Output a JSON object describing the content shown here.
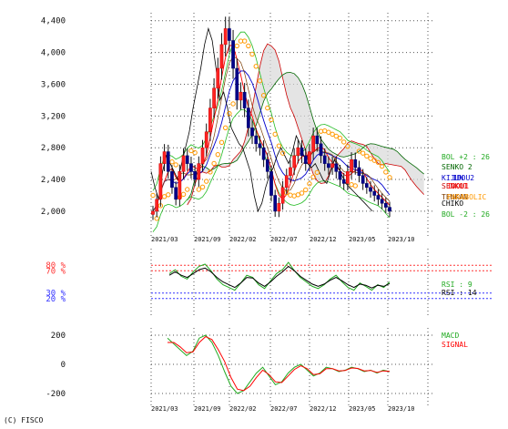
{
  "chart_data": [
    {
      "type": "candlestick",
      "panel": "price",
      "ylim": [
        1850,
        4500
      ],
      "yticks": [
        2000,
        2400,
        2800,
        3200,
        3600,
        4000,
        4400
      ],
      "ytick_labels": [
        "2,000",
        "2,400",
        "2,800",
        "3,200",
        "3,600",
        "4,000",
        "4,400"
      ],
      "x_labels": [
        "2021/03",
        "2021/09",
        "2022/02",
        "2022/07",
        "2022/12",
        "2023/05",
        "2023/10"
      ],
      "legend": [
        {
          "label": "BOL +2 : 26",
          "color": "#22aa22"
        },
        {
          "label": "SENKO 2",
          "color": "#006600"
        },
        {
          "label": "KIJUN",
          "color": "#0000cc"
        },
        {
          "label": "IDOU2",
          "color": "#0000cc"
        },
        {
          "label": "SENKO1",
          "color": "#cc0000"
        },
        {
          "label": "IDOU1",
          "color": "#ff0000"
        },
        {
          "label": "TENKAN",
          "color": "#7a3a00"
        },
        {
          "label": "PARABOLIC",
          "color": "#ff9900"
        },
        {
          "label": "CHIKO",
          "color": "#000000"
        },
        {
          "label": "BOL -2 : 26",
          "color": "#22aa22"
        }
      ],
      "close_series": [
        2000,
        2150,
        2600,
        2750,
        2500,
        2300,
        2150,
        2500,
        2700,
        2600,
        2500,
        2400,
        2600,
        2800,
        3000,
        3300,
        3550,
        3800,
        4100,
        4300,
        4150,
        3800,
        3400,
        3500,
        3300,
        3050,
        2950,
        2850,
        2800,
        2650,
        2500,
        2200,
        2000,
        2100,
        2300,
        2450,
        2550,
        2700,
        2800,
        2700,
        2600,
        2750,
        2950,
        2850,
        2700,
        2600,
        2550,
        2600,
        2500,
        2400,
        2350,
        2500,
        2650,
        2550,
        2450,
        2350,
        2300,
        2250,
        2200,
        2150,
        2100,
        2050,
        2000
      ]
    },
    {
      "type": "line",
      "panel": "rsi",
      "ylim": [
        0,
        100
      ],
      "yticks": [
        20,
        30,
        70,
        80
      ],
      "ytick_labels": [
        "20 %",
        "30 %",
        "70 %",
        "80 %"
      ],
      "series": [
        {
          "name": "RSI : 9",
          "color": "#22aa22",
          "values": [
            65,
            72,
            60,
            55,
            68,
            78,
            82,
            70,
            55,
            45,
            40,
            35,
            48,
            62,
            58,
            45,
            38,
            52,
            65,
            72,
            85,
            70,
            58,
            50,
            42,
            38,
            45,
            55,
            62,
            50,
            40,
            35,
            48,
            42,
            35,
            45,
            40,
            50
          ]
        },
        {
          "name": "RSI : 14",
          "color": "#000000",
          "values": [
            62,
            68,
            62,
            58,
            65,
            72,
            75,
            68,
            58,
            50,
            45,
            40,
            48,
            58,
            57,
            48,
            42,
            50,
            60,
            68,
            78,
            70,
            60,
            53,
            46,
            42,
            46,
            53,
            58,
            52,
            45,
            40,
            46,
            44,
            39,
            44,
            42,
            47
          ]
        }
      ]
    },
    {
      "type": "line",
      "panel": "macd",
      "ylim": [
        -250,
        250
      ],
      "yticks": [
        -200,
        0,
        200
      ],
      "ytick_labels": [
        "-200",
        "0",
        "200"
      ],
      "series": [
        {
          "name": "MACD",
          "color": "#22aa22",
          "values": [
            180,
            140,
            100,
            60,
            90,
            180,
            200,
            150,
            60,
            -50,
            -150,
            -200,
            -180,
            -120,
            -60,
            -20,
            -80,
            -140,
            -120,
            -60,
            -20,
            0,
            -40,
            -80,
            -60,
            -20,
            -30,
            -50,
            -40,
            -20,
            -30,
            -50,
            -40,
            -60,
            -40,
            -50
          ]
        },
        {
          "name": "SIGNAL",
          "color": "#ff0000",
          "values": [
            150,
            150,
            120,
            80,
            85,
            150,
            190,
            170,
            100,
            20,
            -90,
            -170,
            -180,
            -150,
            -90,
            -40,
            -70,
            -120,
            -125,
            -80,
            -35,
            -10,
            -30,
            -70,
            -65,
            -30,
            -30,
            -45,
            -42,
            -25,
            -28,
            -45,
            -42,
            -55,
            -45,
            -48
          ]
        }
      ]
    }
  ],
  "copyright": "(C) FISCO"
}
